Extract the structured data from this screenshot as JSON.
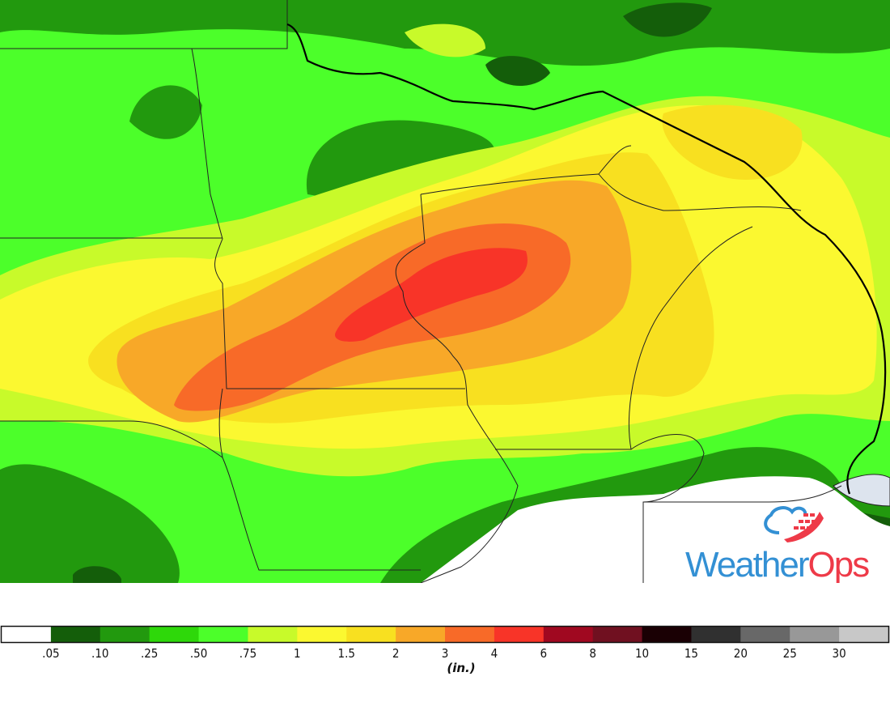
{
  "map": {
    "type": "precipitation-accumulation",
    "region": "Upper Midwest / Great Lakes",
    "fill_colors": {
      "base": "#4cff2a",
      "dark_green": "#22990e",
      "darkest_green": "#145e0a",
      "yellow_green": "#c8fa2a",
      "yellow": "#fbf830",
      "gold": "#f8e020",
      "orange": "#f8a828",
      "dark_orange": "#f86a28",
      "red": "#f83428",
      "no_data": "#ffffff",
      "lake": "#dde4ee"
    }
  },
  "logo": {
    "text_part1": "Weather",
    "text_part2": "Ops",
    "colors": {
      "blue": "#3390d4",
      "red": "#ee3a48"
    }
  },
  "legend": {
    "unit": "(in.)",
    "colors": [
      "#ffffff",
      "#145e0a",
      "#22990e",
      "#2ed80a",
      "#4cff2a",
      "#c8fa2a",
      "#fbf830",
      "#f8e020",
      "#f8a828",
      "#f86a28",
      "#f83428",
      "#a00820",
      "#701020",
      "#1a0004",
      "#303030",
      "#686868",
      "#989898",
      "#c8c8c8"
    ],
    "labels": [
      ".05",
      ".10",
      ".25",
      ".50",
      ".75",
      "1",
      "1.5",
      "2",
      "3",
      "4",
      "6",
      "8",
      "10",
      "15",
      "20",
      "25",
      "30"
    ]
  }
}
